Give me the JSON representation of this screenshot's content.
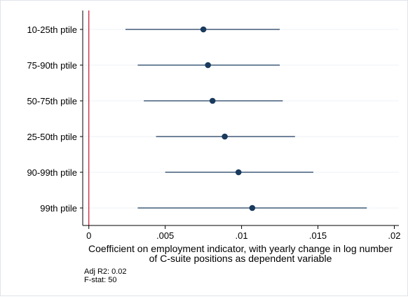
{
  "chart_data": {
    "type": "scatter",
    "subtype": "coefficient-plot",
    "title": "",
    "xlabel": "Coefficient on employment indicator, with yearly change in log number",
    "xlabel_line2": "of C-suite positions as dependent variable",
    "ylabel": "",
    "xlim": [
      -0.0004,
      0.0203
    ],
    "x_ticks": [
      0,
      0.005,
      0.01,
      0.015,
      0.02
    ],
    "x_tick_labels": [
      "0",
      ".005",
      ".01",
      ".015",
      ".02"
    ],
    "reference_line": {
      "x": 0,
      "color": "#c8102e"
    },
    "grid": "horizontal",
    "categories": [
      "10-25th ptile",
      "75-90th ptile",
      "50-75th ptile",
      "25-50th ptile",
      "90-99th ptile",
      "99th ptile"
    ],
    "estimates": [
      0.0075,
      0.0078,
      0.0081,
      0.0089,
      0.0098,
      0.0107
    ],
    "ci_lower": [
      0.0024,
      0.0032,
      0.0036,
      0.0044,
      0.005,
      0.0032
    ],
    "ci_upper": [
      0.0125,
      0.0125,
      0.0127,
      0.0135,
      0.0147,
      0.0182
    ],
    "colors": {
      "marker": "#1a3a5e",
      "ci_line": "#1a3a5e",
      "grid": "#eef1f4"
    },
    "notes": [
      "Adj R2: 0.02",
      "F-stat: 50"
    ]
  }
}
